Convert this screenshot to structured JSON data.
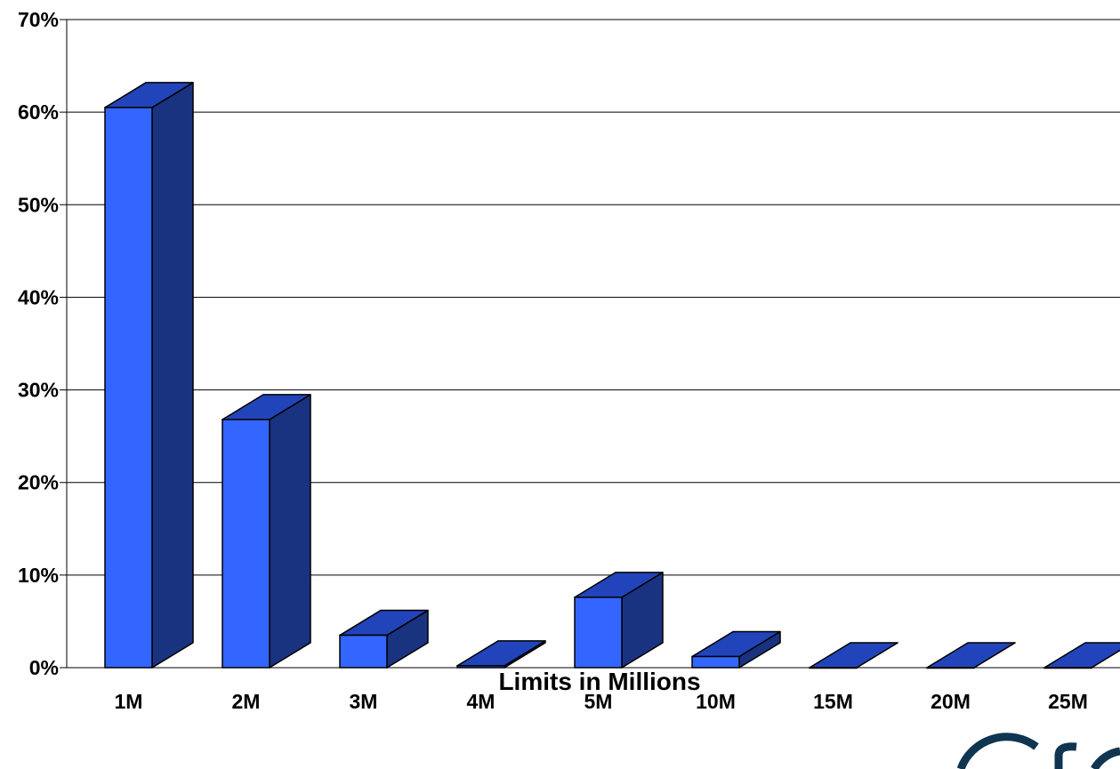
{
  "chart_data": {
    "type": "bar",
    "style": "3d-column",
    "categories": [
      "1M",
      "2M",
      "3M",
      "4M",
      "5M",
      "10M",
      "15M",
      "20M",
      "25M"
    ],
    "values": [
      60.5,
      26.8,
      3.5,
      0.2,
      7.6,
      1.2,
      0,
      0,
      0
    ],
    "unit": "%",
    "xlabel": "Limits in Millions",
    "ylabel": "",
    "ylim": [
      0,
      70
    ],
    "yticks": [
      "0%",
      "10%",
      "20%",
      "30%",
      "40%",
      "50%",
      "60%",
      "70%"
    ],
    "grid": true,
    "colors": {
      "front": "#3366ff",
      "top": "#2244bb",
      "side": "#1a3380",
      "outline": "#000000"
    }
  }
}
